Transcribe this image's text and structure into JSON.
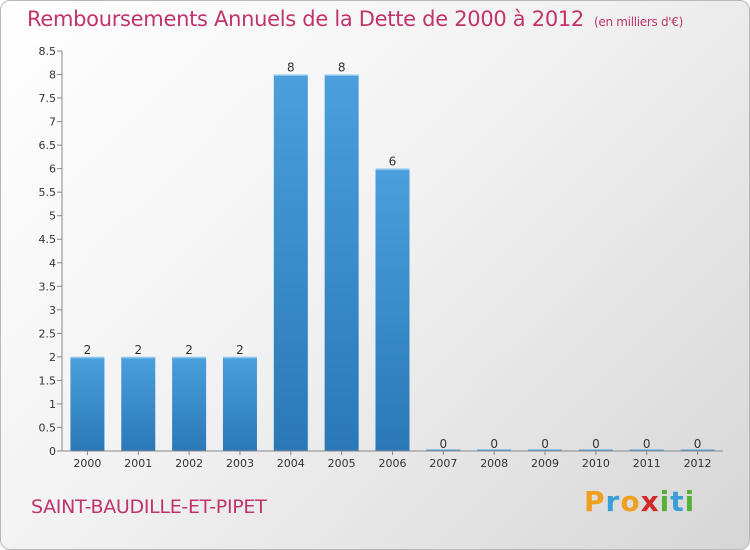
{
  "chart_data": {
    "type": "bar",
    "title": "Remboursements Annuels de la Dette de 2000 à 2012",
    "unit_note": "(en milliers d'€)",
    "categories": [
      "2000",
      "2001",
      "2002",
      "2003",
      "2004",
      "2005",
      "2006",
      "2007",
      "2008",
      "2009",
      "2010",
      "2011",
      "2012"
    ],
    "values": [
      2,
      2,
      2,
      2,
      8,
      8,
      6,
      0,
      0,
      0,
      0,
      0,
      0
    ],
    "data_labels": [
      "2",
      "2",
      "2",
      "2",
      "8",
      "8",
      "6",
      "0",
      "0",
      "0",
      "0",
      "0",
      "0"
    ],
    "yticks": [
      "0",
      "0.5",
      "1",
      "1.5",
      "2",
      "2.5",
      "3",
      "3.5",
      "4",
      "4.5",
      "5",
      "5.5",
      "6",
      "6.5",
      "7",
      "7.5",
      "8",
      "8.5"
    ],
    "ylim": [
      0,
      8.5
    ],
    "grid": false,
    "legend": "none",
    "bar_color": "#4a9fdc",
    "bar_color_dark": "#2a78b8"
  },
  "commune": "SAINT-BAUDILLE-ET-PIPET",
  "logo": {
    "letters": [
      "P",
      "r",
      "o",
      "x",
      "i",
      "t",
      "i"
    ],
    "colors": [
      "#f0a020",
      "#3a9fd8",
      "#f0a020",
      "#d02a2a",
      "#55b03a",
      "#3a9fd8",
      "#55b03a"
    ]
  }
}
